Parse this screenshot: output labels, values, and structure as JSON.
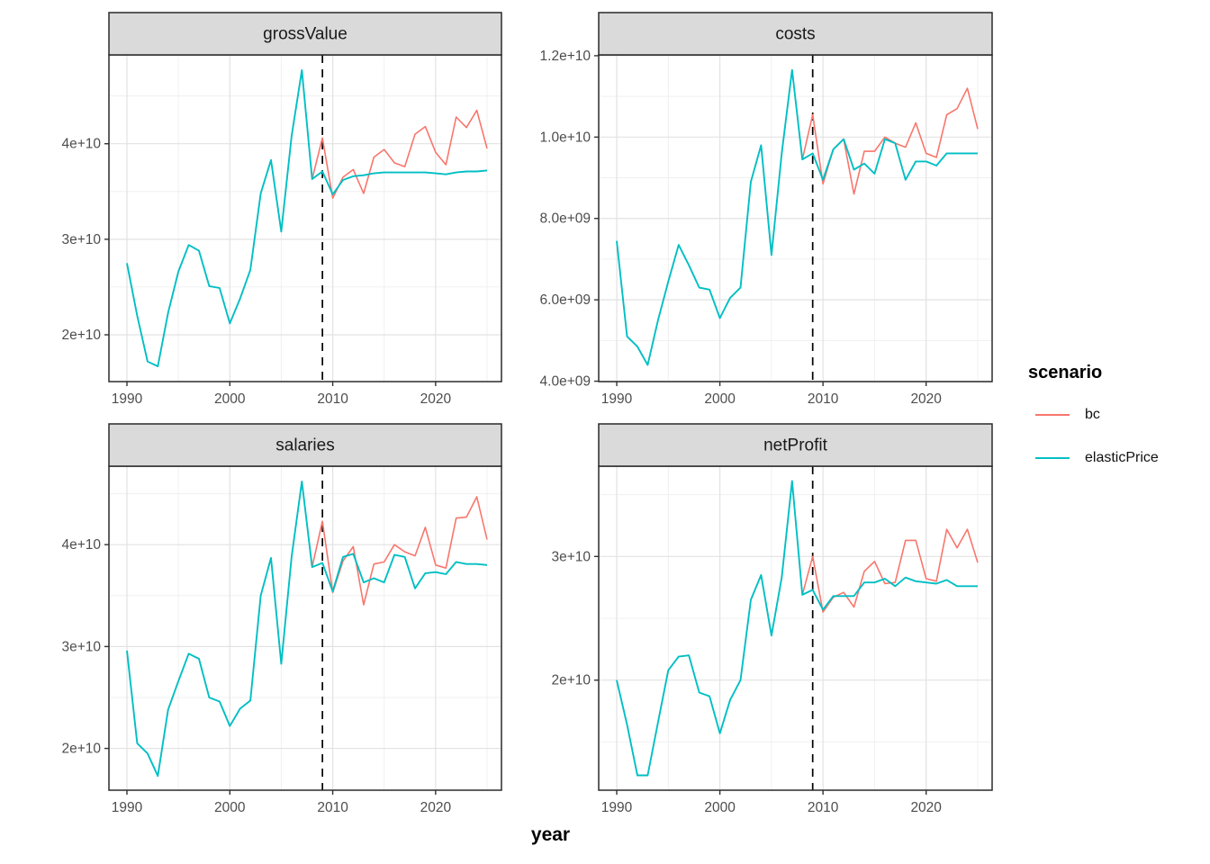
{
  "figure": {
    "axis_title_x": "year",
    "legend": {
      "title": "scenario",
      "items": [
        {
          "label": "bc",
          "color_key": "bc"
        },
        {
          "label": "elasticPrice",
          "color_key": "elasticPrice"
        }
      ]
    },
    "colors": {
      "bc": "#F8766D",
      "elasticPrice": "#00BFC4",
      "strip_bg": "#DADADA",
      "panel_border": "#2a2a2a",
      "grid_major": "#E2E2E2",
      "grid_minor": "#F0F0F0",
      "axis_text": "#4D4D4D",
      "strip_text": "#1a1a1a",
      "vline": "#000000"
    }
  },
  "chart_data": {
    "type": "line",
    "note": "values in billions (1e9); faceted time series 1990-2025, dashed vline marks forecast start",
    "x_years": [
      1990,
      1991,
      1992,
      1993,
      1994,
      1995,
      1996,
      1997,
      1998,
      1999,
      2000,
      2001,
      2002,
      2003,
      2004,
      2005,
      2006,
      2007,
      2008,
      2009,
      2010,
      2011,
      2012,
      2013,
      2014,
      2015,
      2016,
      2017,
      2018,
      2019,
      2020,
      2021,
      2022,
      2023,
      2024,
      2025
    ],
    "xlim": [
      1988.25,
      2026.4
    ],
    "xticks": {
      "values": [
        1990,
        2000,
        2010,
        2020
      ],
      "labels": [
        "1990",
        "2000",
        "2010",
        "2020"
      ]
    },
    "xminor": [
      1995,
      2005,
      2015,
      2025
    ],
    "vline_year": 2009,
    "bc_start_year": 2008,
    "panels": [
      {
        "key": "grossValue",
        "title": "grossValue",
        "ylim": [
          15.1,
          49.3
        ],
        "yticks": {
          "values": [
            20,
            30,
            40
          ],
          "labels": [
            "2e+10",
            "3e+10",
            "4e+10"
          ]
        },
        "yminor": [
          25,
          35,
          45
        ],
        "series": {
          "elasticPrice": [
            27.5,
            22.0,
            17.2,
            16.7,
            22.3,
            26.6,
            29.4,
            28.8,
            25.1,
            24.9,
            21.2,
            23.8,
            26.8,
            34.8,
            38.3,
            30.8,
            40.8,
            47.7,
            36.3,
            37.1,
            34.7,
            36.2,
            36.6,
            36.7,
            36.9,
            37.0,
            37.0,
            37.0,
            37.0,
            37.0,
            36.9,
            36.8,
            37.0,
            37.1,
            37.1,
            37.2
          ],
          "bc": [
            36.3,
            40.6,
            34.3,
            36.5,
            37.3,
            34.8,
            38.6,
            39.4,
            38.0,
            37.6,
            41.0,
            41.8,
            39.1,
            37.8,
            42.8,
            41.7,
            43.5,
            39.5
          ]
        }
      },
      {
        "key": "costs",
        "title": "costs",
        "ylim": [
          3.99,
          12.02
        ],
        "yticks": {
          "values": [
            4,
            6,
            8,
            10,
            12
          ],
          "labels": [
            "4.0e+09",
            "6.0e+09",
            "8.0e+09",
            "1.0e+10",
            "1.2e+10"
          ]
        },
        "yminor": [
          5,
          7,
          9,
          11
        ],
        "series": {
          "elasticPrice": [
            7.45,
            5.1,
            4.85,
            4.4,
            5.5,
            6.45,
            7.35,
            6.85,
            6.3,
            6.25,
            5.55,
            6.05,
            6.3,
            8.9,
            9.8,
            7.1,
            9.6,
            11.65,
            9.45,
            9.6,
            8.95,
            9.7,
            9.95,
            9.2,
            9.35,
            9.1,
            9.95,
            9.85,
            8.95,
            9.4,
            9.4,
            9.3,
            9.6,
            9.6,
            9.6,
            9.6
          ],
          "bc": [
            9.45,
            10.55,
            8.85,
            9.7,
            9.95,
            8.6,
            9.65,
            9.65,
            10.0,
            9.85,
            9.75,
            10.35,
            9.6,
            9.5,
            10.55,
            10.7,
            11.2,
            10.2
          ]
        }
      },
      {
        "key": "salaries",
        "title": "salaries",
        "ylim": [
          15.9,
          47.7
        ],
        "yticks": {
          "values": [
            20,
            30,
            40
          ],
          "labels": [
            "2e+10",
            "3e+10",
            "4e+10"
          ]
        },
        "yminor": [
          25,
          35,
          45
        ],
        "series": {
          "elasticPrice": [
            29.6,
            20.5,
            19.5,
            17.3,
            23.8,
            26.6,
            29.3,
            28.8,
            25.0,
            24.6,
            22.2,
            23.9,
            24.7,
            35.0,
            38.7,
            28.3,
            38.8,
            46.2,
            37.8,
            38.2,
            35.4,
            38.8,
            39.1,
            36.3,
            36.7,
            36.3,
            39.0,
            38.8,
            35.7,
            37.2,
            37.3,
            37.1,
            38.3,
            38.1,
            38.1,
            38.0
          ],
          "bc": [
            37.8,
            42.3,
            35.3,
            38.4,
            39.8,
            34.1,
            38.1,
            38.3,
            40.0,
            39.3,
            38.9,
            41.7,
            38.0,
            37.7,
            42.6,
            42.7,
            44.7,
            40.5
          ]
        }
      },
      {
        "key": "netProfit",
        "title": "netProfit",
        "ylim": [
          11.1,
          37.3
        ],
        "yticks": {
          "values": [
            20,
            30
          ],
          "labels": [
            "2e+10",
            "3e+10"
          ]
        },
        "yminor": [
          15,
          25,
          35
        ],
        "series": {
          "elasticPrice": [
            20.0,
            16.4,
            12.3,
            12.3,
            16.6,
            20.8,
            21.9,
            22.0,
            19.0,
            18.7,
            15.7,
            18.4,
            20.0,
            26.5,
            28.5,
            23.6,
            28.3,
            36.1,
            26.9,
            27.3,
            25.7,
            26.8,
            26.8,
            26.8,
            27.9,
            27.9,
            28.2,
            27.6,
            28.3,
            28.0,
            27.9,
            27.8,
            28.1,
            27.6,
            27.6,
            27.6
          ],
          "bc": [
            26.9,
            30.0,
            25.5,
            26.7,
            27.1,
            25.9,
            28.8,
            29.6,
            27.8,
            27.9,
            31.3,
            31.3,
            28.2,
            28.0,
            32.2,
            30.7,
            32.2,
            29.5
          ]
        }
      }
    ]
  }
}
